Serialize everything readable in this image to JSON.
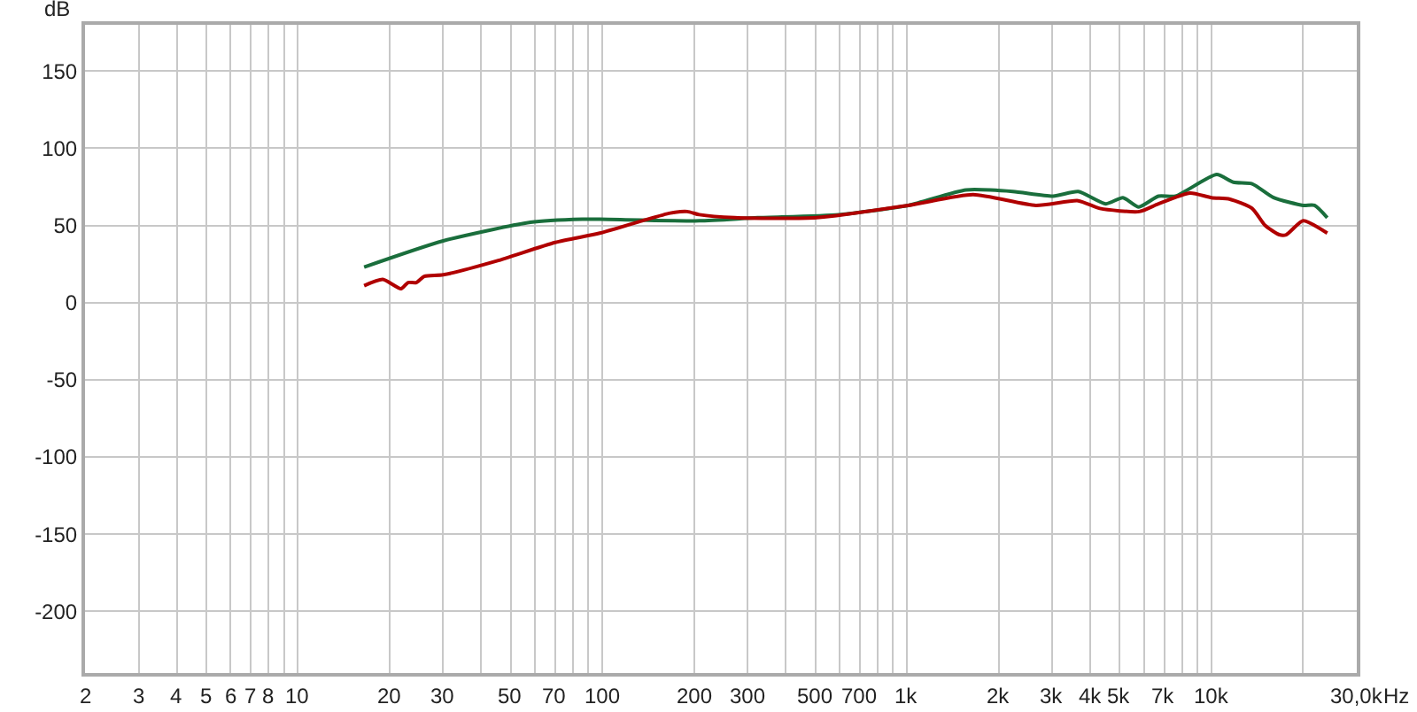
{
  "chart_data": {
    "type": "line",
    "ylabel": "dB",
    "log": "x",
    "grid": true,
    "line_style": "solid",
    "marker": "none",
    "xlim": [
      2,
      30000
    ],
    "ylim": [
      -240,
      180
    ],
    "xticks": [
      2,
      3,
      4,
      5,
      6,
      7,
      8,
      {
        "value": 9,
        "label": null
      },
      10,
      20,
      30,
      {
        "value": 40,
        "label": null
      },
      50,
      {
        "value": 60,
        "label": null
      },
      70,
      {
        "value": 80,
        "label": null
      },
      {
        "value": 90,
        "label": null
      },
      100,
      200,
      300,
      {
        "value": 400,
        "label": null
      },
      500,
      {
        "value": 600,
        "label": null
      },
      700,
      {
        "value": 800,
        "label": null
      },
      {
        "value": 900,
        "label": null
      },
      {
        "value": 1000,
        "label": "1k"
      },
      {
        "value": 2000,
        "label": "2k"
      },
      {
        "value": 3000,
        "label": "3k"
      },
      {
        "value": 4000,
        "label": "4k"
      },
      {
        "value": 5000,
        "label": "5k"
      },
      {
        "value": 6000,
        "label": null
      },
      {
        "value": 7000,
        "label": "7k"
      },
      {
        "value": 8000,
        "label": null
      },
      {
        "value": 9000,
        "label": null
      },
      {
        "value": 10000,
        "label": "10k"
      },
      {
        "value": 20000,
        "label": null
      },
      {
        "value": 30000,
        "label": "30,0k"
      }
    ],
    "xlabel": "Hz",
    "yticks": [
      -200,
      -150,
      -100,
      -50,
      0,
      50,
      100,
      150
    ],
    "series": [
      {
        "color": "#1a6e3c",
        "x": [
          16.5,
          30,
          58,
          86,
          98,
          208,
          323,
          597,
          1010,
          1565,
          2225,
          3020,
          3650,
          4500,
          5120,
          5770,
          6700,
          7620,
          10400,
          11800,
          13600,
          16000,
          20000,
          21800,
          24000
        ],
        "values": [
          23,
          40,
          52,
          54,
          54,
          53,
          55,
          57,
          63,
          73,
          72,
          69,
          72,
          64,
          68,
          62,
          69,
          69,
          83,
          78,
          77,
          68,
          63,
          63,
          55
        ]
      },
      {
        "color": "#b00000",
        "x": [
          16.5,
          19,
          21.8,
          23,
          24.5,
          26,
          30,
          45,
          70,
          98,
          135,
          167,
          190,
          208,
          272,
          505,
          1010,
          1650,
          2650,
          3650,
          4300,
          5800,
          6700,
          8500,
          10000,
          11500,
          13600,
          15000,
          16700,
          17600,
          20000,
          24000
        ],
        "values": [
          11,
          15,
          9,
          13,
          13,
          17,
          18,
          27,
          39,
          45,
          53,
          58,
          59,
          57,
          55,
          55,
          63,
          70,
          63,
          66,
          61,
          59,
          64,
          71,
          68,
          67,
          61,
          50,
          44,
          44,
          53,
          45
        ]
      }
    ]
  }
}
